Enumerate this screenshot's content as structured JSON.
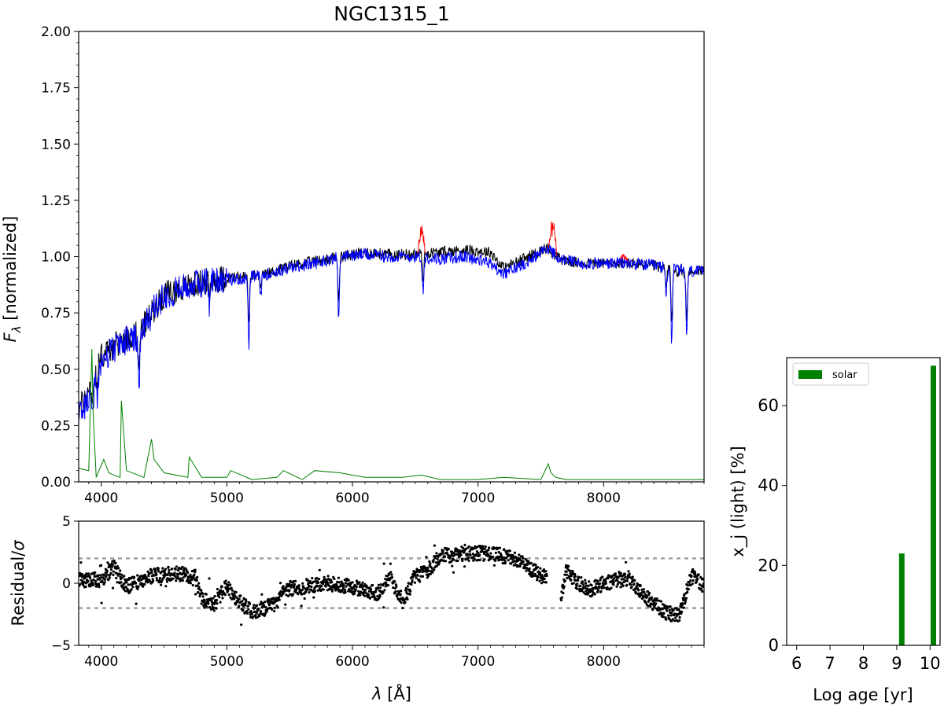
{
  "title": "NGC1315_1",
  "colors": {
    "observed": "#000000",
    "model": "#0000ff",
    "masked": "#ff0000",
    "emission": "#008000",
    "residual": "#000000",
    "sigma_line": "#a0a0a0",
    "bars": "#008000"
  },
  "chart_data": [
    {
      "id": "spectrum",
      "type": "line",
      "xlabel": "",
      "ylabel": "F_λ [normalized]",
      "ylabel_parts": {
        "symbol": "F",
        "subscript": "λ",
        "rest": " [normalized]"
      },
      "xlim": [
        3820,
        8800
      ],
      "ylim": [
        0,
        2.0
      ],
      "xticks": [
        4000,
        5000,
        6000,
        7000,
        8000
      ],
      "yticks": [
        "0.00",
        "0.25",
        "0.50",
        "0.75",
        "1.00",
        "1.25",
        "1.50",
        "1.75",
        "2.00"
      ],
      "anchor_points": {
        "continuum_x": [
          3820,
          3900,
          3950,
          4000,
          4100,
          4200,
          4300,
          4400,
          4500,
          4700,
          4900,
          5100,
          5300,
          5500,
          5700,
          5900,
          6100,
          6300,
          6500,
          6700,
          6900,
          7100,
          7200,
          7400,
          7550,
          7650,
          7800,
          8000,
          8200,
          8400,
          8600,
          8800
        ],
        "observed_y": [
          0.32,
          0.4,
          0.48,
          0.56,
          0.6,
          0.64,
          0.66,
          0.75,
          0.83,
          0.87,
          0.9,
          0.91,
          0.92,
          0.96,
          0.98,
          1.0,
          1.02,
          1.01,
          1.01,
          1.02,
          1.03,
          1.02,
          0.95,
          1.0,
          1.04,
          0.99,
          0.97,
          0.97,
          0.97,
          0.96,
          0.93,
          0.94
        ],
        "model_y": [
          0.3,
          0.37,
          0.43,
          0.53,
          0.59,
          0.63,
          0.63,
          0.75,
          0.83,
          0.87,
          0.9,
          0.9,
          0.92,
          0.95,
          0.97,
          1.0,
          1.01,
          1.0,
          1.0,
          0.99,
          1.0,
          0.97,
          0.92,
          0.98,
          1.04,
          0.99,
          0.97,
          0.97,
          0.97,
          0.96,
          0.94,
          0.93
        ]
      },
      "absorption_features": [
        {
          "x": 3933,
          "depth": 0.12
        },
        {
          "x": 3968,
          "depth": 0.1
        },
        {
          "x": 4300,
          "depth": 0.25
        },
        {
          "x": 4861,
          "depth": 0.12
        },
        {
          "x": 5175,
          "depth": 0.3
        },
        {
          "x": 5270,
          "depth": 0.1
        },
        {
          "x": 5890,
          "depth": 0.27
        },
        {
          "x": 6563,
          "depth": 0.16
        },
        {
          "x": 8498,
          "depth": 0.12
        },
        {
          "x": 8542,
          "depth": 0.33
        },
        {
          "x": 8662,
          "depth": 0.3
        }
      ],
      "masked_regions": [
        {
          "x": [
            6520,
            6580
          ],
          "peak": 1.15
        },
        {
          "x": [
            7560,
            7630
          ],
          "peak": 1.16
        },
        {
          "x": [
            8120,
            8200
          ],
          "peak": 1.01
        }
      ],
      "emission_anchor_points": {
        "x": [
          3820,
          3900,
          3925,
          3935,
          3960,
          4020,
          4060,
          4100,
          4150,
          4160,
          4200,
          4340,
          4400,
          4420,
          4500,
          4690,
          4700,
          4800,
          5000,
          5030,
          5200,
          5400,
          5450,
          5600,
          5700,
          5900,
          6100,
          6400,
          6550,
          6700,
          7000,
          7200,
          7500,
          7560,
          7580,
          7620,
          7700,
          8000,
          8300,
          8600,
          8800
        ],
        "y": [
          0.06,
          0.05,
          0.59,
          0.3,
          0.02,
          0.1,
          0.04,
          0.03,
          0.02,
          0.36,
          0.05,
          0.02,
          0.19,
          0.1,
          0.04,
          0.02,
          0.11,
          0.02,
          0.02,
          0.05,
          0.01,
          0.02,
          0.05,
          0.01,
          0.05,
          0.04,
          0.02,
          0.02,
          0.03,
          0.01,
          0.01,
          0.02,
          0.01,
          0.08,
          0.04,
          0.02,
          0.01,
          0.01,
          0.01,
          0.01,
          0.01
        ]
      }
    },
    {
      "id": "residuals",
      "type": "scatter",
      "xlabel": "λ [Å]",
      "xlabel_parts": {
        "symbol": "λ",
        "rest": " [Å]"
      },
      "ylabel": "Residual/σ",
      "ylabel_parts": {
        "text": "Residual/",
        "symbol": "σ"
      },
      "xlim": [
        3820,
        8800
      ],
      "ylim": [
        -5,
        5
      ],
      "xticks": [
        4000,
        5000,
        6000,
        7000,
        8000
      ],
      "yticks": [
        -5,
        0,
        5
      ],
      "hlines": [
        2,
        -2
      ],
      "trend": {
        "x": [
          3820,
          4000,
          4100,
          4200,
          4400,
          4600,
          4750,
          4800,
          4900,
          5000,
          5100,
          5200,
          5400,
          5450,
          5600,
          5800,
          6000,
          6200,
          6300,
          6400,
          6500,
          6600,
          6700,
          6900,
          7100,
          7300,
          7500,
          7550,
          7650,
          7700,
          7800,
          7900,
          8000,
          8200,
          8300,
          8400,
          8500,
          8600,
          8700,
          8800
        ],
        "y": [
          0.2,
          0.3,
          1.3,
          -0.3,
          0.6,
          0.8,
          0.5,
          -1.3,
          -1.7,
          -0.2,
          -1.5,
          -2.3,
          -1.6,
          -0.5,
          -0.3,
          0.0,
          -0.3,
          -0.8,
          0.6,
          -1.5,
          0.5,
          1.0,
          2.2,
          2.4,
          2.4,
          2.0,
          0.6,
          0.6,
          -1.8,
          1.0,
          0.0,
          -0.5,
          0.0,
          0.4,
          -0.8,
          -1.6,
          -2.4,
          -2.6,
          0.6,
          -0.2
        ]
      },
      "gaps": [
        [
          7550,
          7660
        ]
      ],
      "scatter_amplitude": 0.6
    },
    {
      "id": "age-distribution",
      "type": "bar",
      "xlabel": "Log age [yr]",
      "ylabel": "x_j (light) [%]",
      "xlim": [
        5.7,
        10.3
      ],
      "ylim": [
        0,
        72
      ],
      "xticks": [
        6,
        7,
        8,
        9,
        10
      ],
      "yticks": [
        0,
        20,
        40,
        60
      ],
      "legend": {
        "position": "top-left",
        "entries": [
          "solar"
        ]
      },
      "series": [
        {
          "name": "solar",
          "x": [
            9.15,
            10.1
          ],
          "values": [
            23,
            70
          ]
        }
      ]
    }
  ]
}
